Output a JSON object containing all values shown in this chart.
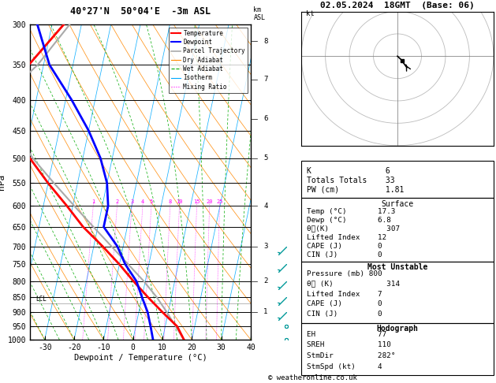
{
  "title_left": "40°27'N  50°04'E  -3m ASL",
  "title_right": "02.05.2024  18GMT  (Base: 06)",
  "xlabel": "Dewpoint / Temperature (°C)",
  "ylabel_left": "hPa",
  "pressure_levels": [
    300,
    350,
    400,
    450,
    500,
    550,
    600,
    650,
    700,
    750,
    800,
    850,
    900,
    950,
    1000
  ],
  "xmin": -35,
  "xmax": 40,
  "skew_factor": 22.5,
  "temp_profile_T": [
    17.3,
    14.0,
    8.0,
    2.0,
    -4.0,
    -10.0,
    -17.0,
    -25.0,
    -32.0,
    -40.0,
    -48.0,
    -56.0,
    -64.0,
    -55.0,
    -46.0
  ],
  "temp_profile_P": [
    1000,
    950,
    900,
    850,
    800,
    750,
    700,
    650,
    600,
    550,
    500,
    450,
    400,
    350,
    300
  ],
  "dewp_profile_T": [
    6.8,
    5.0,
    3.0,
    0.0,
    -3.0,
    -8.0,
    -12.0,
    -18.0,
    -18.0,
    -20.0,
    -24.0,
    -30.0,
    -38.0,
    -48.0,
    -55.0
  ],
  "dewp_profile_P": [
    1000,
    950,
    900,
    850,
    800,
    750,
    700,
    650,
    600,
    550,
    500,
    450,
    400,
    350,
    300
  ],
  "parcel_profile_T": [
    17.3,
    13.5,
    9.5,
    5.0,
    -0.5,
    -7.0,
    -14.0,
    -21.5,
    -29.5,
    -38.0,
    -47.0,
    -55.0,
    -62.0,
    -52.0,
    -44.0
  ],
  "parcel_profile_P": [
    1000,
    950,
    900,
    850,
    800,
    750,
    700,
    650,
    600,
    550,
    500,
    450,
    400,
    350,
    300
  ],
  "lcl_pressure": 870,
  "color_temp": "#ff0000",
  "color_dewp": "#0000ff",
  "color_parcel": "#aaaaaa",
  "color_dry_adiabat": "#ff8800",
  "color_wet_adiabat": "#00aa00",
  "color_isotherm": "#00aaff",
  "color_mixing": "#ff00ff",
  "bg_color": "#ffffff",
  "stats": {
    "K": 6,
    "TotTot": 33,
    "PW": 1.81,
    "Surface_Temp": 17.3,
    "Surface_Dewp": 6.8,
    "Surface_Theta_e": 307,
    "Surface_LI": 12,
    "Surface_CAPE": 0,
    "Surface_CIN": 0,
    "MU_Pressure": 800,
    "MU_Theta_e": 314,
    "MU_LI": 7,
    "MU_CAPE": 0,
    "MU_CIN": 0,
    "EH": 77,
    "SREH": 110,
    "StmDir": 282,
    "StmSpd": 4
  },
  "mixing_ratio_values": [
    1,
    2,
    3,
    4,
    5,
    8,
    10,
    15,
    20,
    25
  ],
  "km_labels": [
    1,
    2,
    3,
    4,
    5,
    6,
    7,
    8
  ],
  "km_pressures": [
    900,
    800,
    700,
    600,
    500,
    430,
    370,
    320
  ],
  "wind_barbs_P": [
    1000,
    950,
    900,
    850,
    800,
    750,
    700
  ],
  "wind_barbs_u": [
    2,
    2,
    2,
    3,
    2,
    3,
    4
  ],
  "wind_barbs_v": [
    0,
    1,
    2,
    3,
    2,
    3,
    4
  ]
}
